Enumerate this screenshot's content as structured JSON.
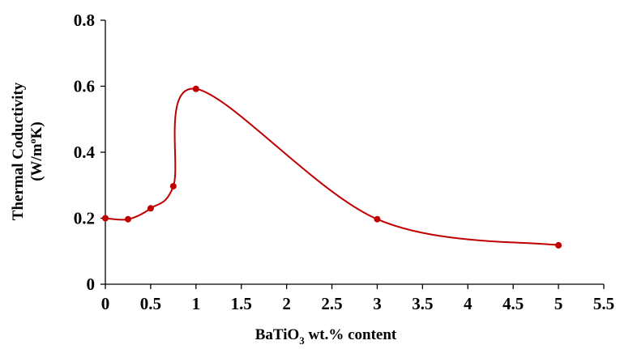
{
  "chart_data": {
    "type": "line",
    "smoothed": true,
    "title": "",
    "xlabel": {
      "main": "BaTiO",
      "sub": "3",
      "rest": " wt.% content"
    },
    "ylabel": {
      "line1": "Thermal Coductivity",
      "line2_pre": "(W/m",
      "line2_sup": "o",
      "line2_post": "K)"
    },
    "xlim": [
      0,
      5.5
    ],
    "ylim": [
      0,
      0.8
    ],
    "x_ticks": [
      "0",
      "0.5",
      "1",
      "1.5",
      "2",
      "2.5",
      "3",
      "3.5",
      "4",
      "4.5",
      "5",
      "5.5"
    ],
    "y_ticks": [
      "0",
      "0.2",
      "0.4",
      "0.6",
      "0.8"
    ],
    "grid": false,
    "legend": "none",
    "series": [
      {
        "color": "#c00000",
        "x": [
          0,
          0.25,
          0.5,
          0.75,
          1,
          3,
          5
        ],
        "y": [
          0.2,
          0.197,
          0.23,
          0.297,
          0.592,
          0.197,
          0.118
        ]
      }
    ]
  }
}
